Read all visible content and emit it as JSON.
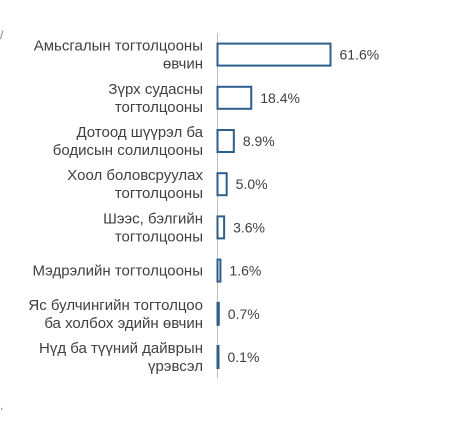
{
  "chart_data": {
    "type": "bar",
    "orientation": "horizontal",
    "categories": [
      [
        "Амьсгалын тогтолцооны",
        "өвчин"
      ],
      [
        "Зүрх судасны",
        "тогтолцооны"
      ],
      [
        "Дотоод шүүрэл ба",
        "бодисын солилцооны"
      ],
      [
        "Хоол боловсруулах",
        "тогтолцооны"
      ],
      [
        "Шээс, бэлгийн",
        "тогтолцооны"
      ],
      [
        "Мэдрэлийн тогтолцооны"
      ],
      [
        "Яс булчингийн тогтолцоо",
        "ба холбох эдийн өвчин"
      ],
      [
        "Нүд ба түүний дайврын",
        "үрэвсэл"
      ]
    ],
    "values": [
      61.6,
      18.4,
      8.9,
      5.0,
      3.6,
      1.6,
      0.7,
      0.1
    ],
    "value_labels": [
      "61.6%",
      "18.4%",
      "8.9%",
      "5.0%",
      "3.6%",
      "1.6%",
      "0.7%",
      "0.1%"
    ],
    "xlim": [
      0,
      61.6
    ],
    "grid": false,
    "bar_style": "outline",
    "colors": {
      "bar_stroke": "#2e5f8a",
      "bar_fill": "#ffffff",
      "axis": "#bfbfbf",
      "text": "#404040"
    }
  }
}
